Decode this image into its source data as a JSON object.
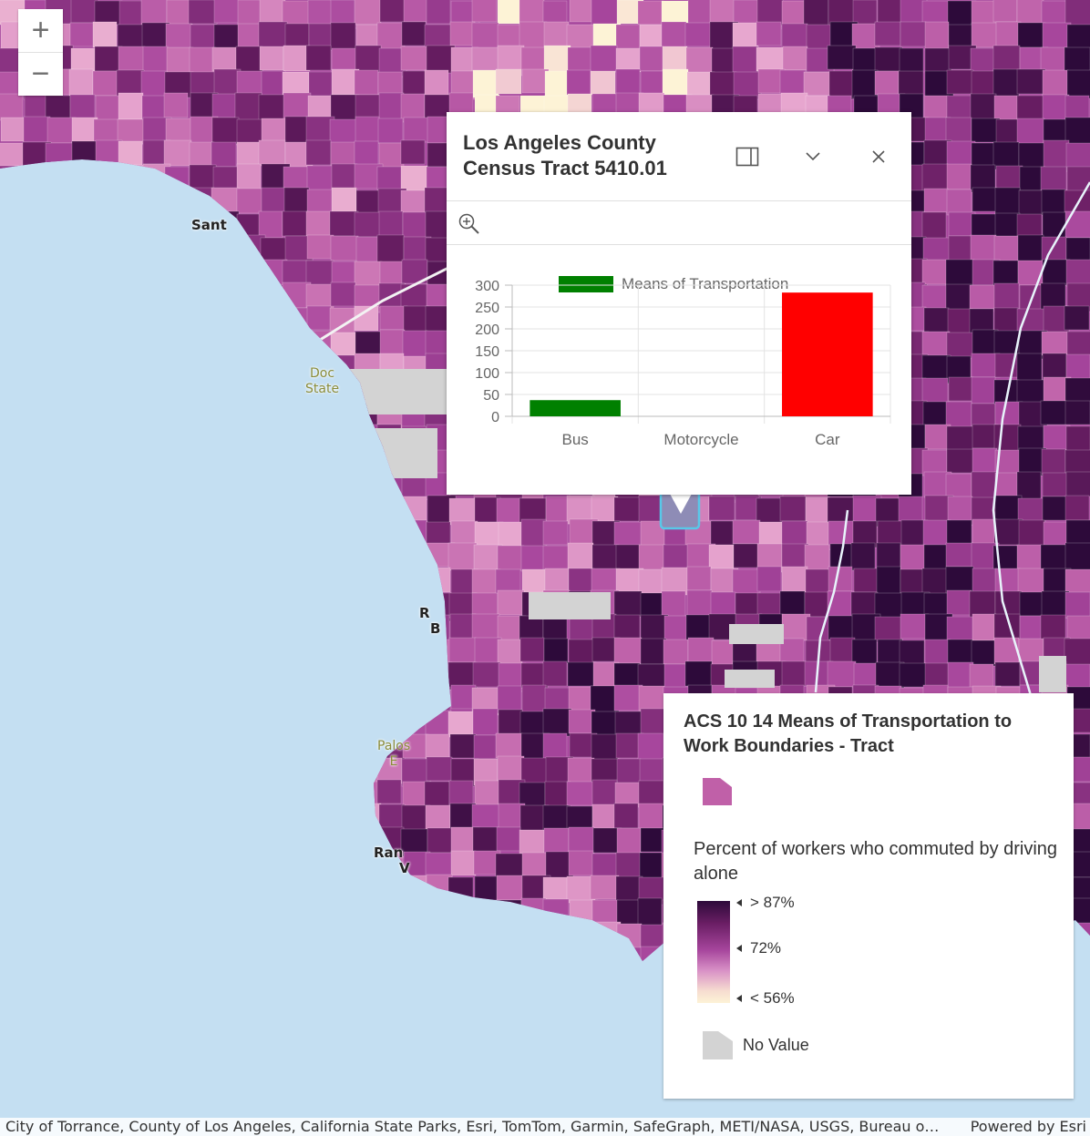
{
  "map": {
    "labels": {
      "santa_monica": "Sant",
      "dockweiler_1": "Doc",
      "dockweiler_2": "State",
      "redondo_1": "R",
      "redondo_2": "B",
      "palos_1": "Palos",
      "palos_2": "E",
      "rancho_1": "Ran",
      "rancho_2": "V"
    },
    "colors": {
      "water": "#c4dff2",
      "no_value": "#d3d3d3",
      "ramp_low": "#fdf3d6",
      "ramp_mid": "#a6459c",
      "ramp_high": "#2d0a3a",
      "selection_outline": "#58c8e8"
    }
  },
  "zoom": {
    "in_icon": "plus-icon",
    "out_icon": "minus-icon",
    "in_label": "+",
    "out_label": "−"
  },
  "popup": {
    "title": "Los Angeles County Census Tract 5410.01",
    "dock_icon": "dock-panel-icon",
    "collapse_icon": "chevron-down-icon",
    "close_icon": "close-icon",
    "zoom_to_icon": "zoom-in-icon"
  },
  "chart_data": {
    "type": "bar",
    "legend": [
      "Means of Transportation"
    ],
    "legend_placement": "top",
    "categories": [
      "Bus",
      "Motorcycle",
      "Car"
    ],
    "series": [
      {
        "name": "Means of Transportation",
        "values": [
          37,
          0,
          283
        ]
      }
    ],
    "bar_colors": [
      "#008000",
      "#008000",
      "#ff0000"
    ],
    "ylim": [
      0,
      300
    ],
    "yticks": [
      0,
      50,
      100,
      150,
      200,
      250,
      300
    ],
    "grid": true
  },
  "legend": {
    "title": "ACS 10 14 Means of Transportation to Work Boundaries - Tract",
    "field": "Percent of workers who commuted by driving alone",
    "ramp_high": "> 87%",
    "ramp_mid": "72%",
    "ramp_low": "< 56%",
    "no_value": "No Value",
    "swatch_color": "#c060a8"
  },
  "attribution": {
    "text": "City of Torrance, County of Los Angeles, California State Parks, Esri, TomTom, Garmin, SafeGraph, METI/NASA, USGS, Bureau o…",
    "powered": "Powered by Esri"
  }
}
